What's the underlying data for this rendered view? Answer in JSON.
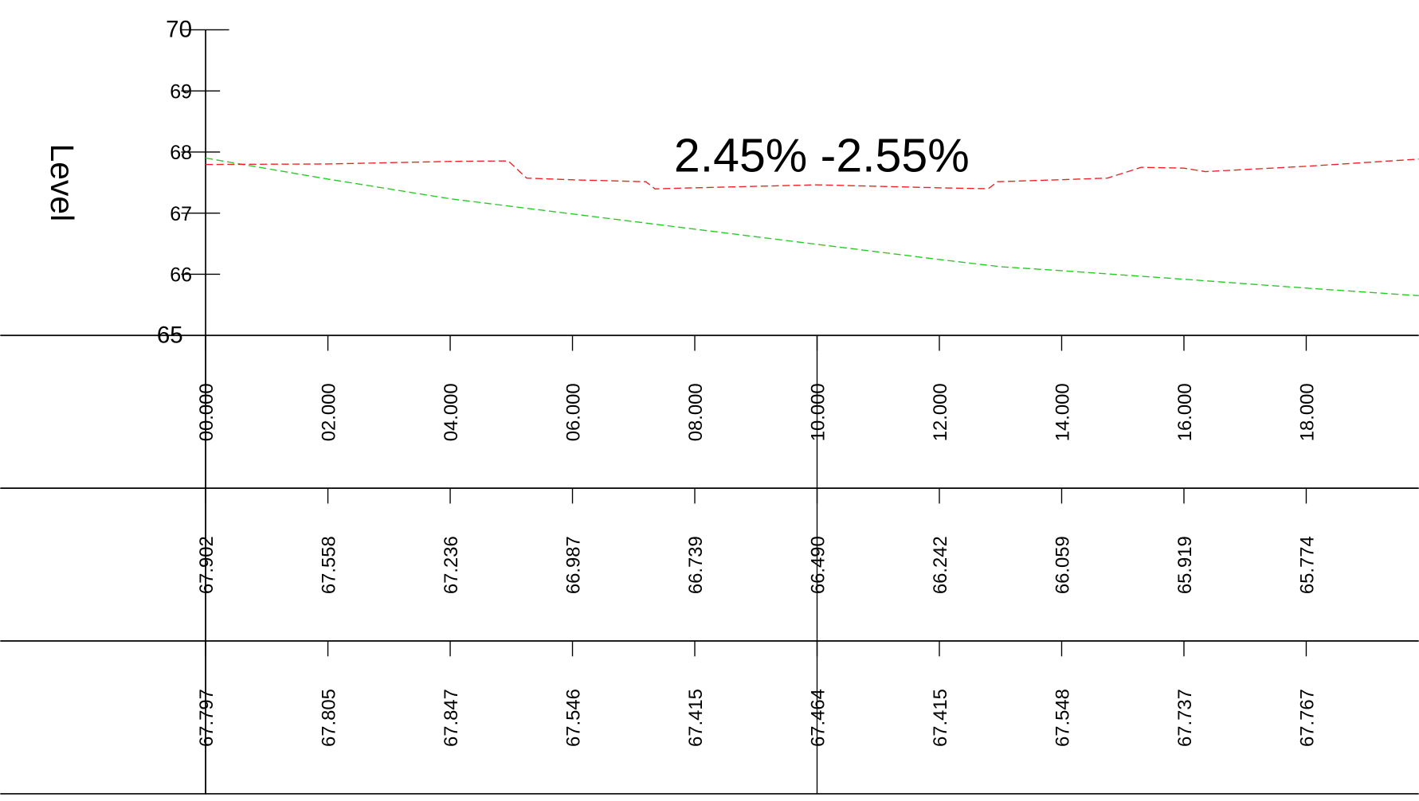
{
  "chart_data": {
    "type": "line",
    "title": "2.45% -2.55%",
    "ylabel": "Level",
    "ylim": [
      65,
      70
    ],
    "yticks": [
      65,
      66,
      67,
      68,
      69,
      70
    ],
    "xlim": [
      0,
      19.84
    ],
    "xticks": [
      {
        "value": 0,
        "label": "00.000"
      },
      {
        "value": 2,
        "label": "02.000"
      },
      {
        "value": 4,
        "label": "04.000"
      },
      {
        "value": 6,
        "label": "06.000"
      },
      {
        "value": 8,
        "label": "08.000"
      },
      {
        "value": 10,
        "label": "10.000"
      },
      {
        "value": 12,
        "label": "12.000"
      },
      {
        "value": 14,
        "label": "14.000"
      },
      {
        "value": 16,
        "label": "16.000"
      },
      {
        "value": 18,
        "label": "18.000"
      }
    ],
    "series": [
      {
        "color": "#22cc22",
        "x": [
          0,
          2,
          4,
          6,
          8,
          10,
          12,
          13,
          14,
          16,
          18,
          19.84
        ],
        "values": [
          67.902,
          67.558,
          67.236,
          66.987,
          66.739,
          66.49,
          66.242,
          66.124,
          66.059,
          65.919,
          65.774,
          65.65
        ]
      },
      {
        "color": "#ee2222",
        "x": [
          0,
          2,
          4,
          4.95,
          5.25,
          6,
          7.2,
          7.35,
          8,
          10,
          12,
          12.8,
          12.95,
          14,
          14.75,
          15.3,
          16,
          16.35,
          18,
          19.84
        ],
        "values": [
          67.797,
          67.805,
          67.847,
          67.855,
          67.574,
          67.546,
          67.515,
          67.397,
          67.415,
          67.464,
          67.415,
          67.4,
          67.515,
          67.548,
          67.574,
          67.75,
          67.737,
          67.68,
          67.767,
          67.885
        ]
      }
    ],
    "table": [
      [
        "67.902",
        "67.558",
        "67.236",
        "66.987",
        "66.739",
        "66.490",
        "66.242",
        "66.059",
        "65.919",
        "65.774"
      ],
      [
        "67.797",
        "67.805",
        "67.847",
        "67.546",
        "67.415",
        "67.464",
        "67.415",
        "67.548",
        "67.737",
        "67.767"
      ]
    ]
  }
}
